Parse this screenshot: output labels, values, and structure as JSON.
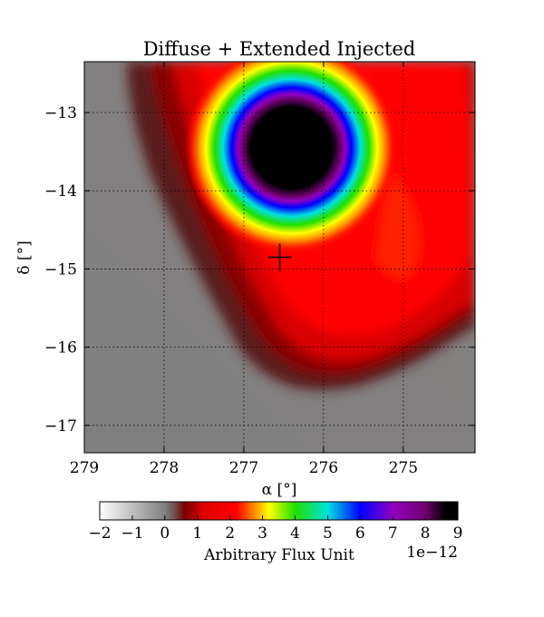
{
  "chart_data": {
    "type": "heatmap",
    "title": "Diffuse + Extended Injected",
    "xlabel": "α [°]",
    "ylabel": "δ [°]",
    "xlim": [
      279.0,
      274.1
    ],
    "ylim": [
      -17.35,
      -12.35
    ],
    "x_ticks": [
      279,
      278,
      277,
      276,
      275
    ],
    "y_ticks": [
      -13,
      -14,
      -15,
      -16,
      -17
    ],
    "grid": true,
    "marker": {
      "type": "cross",
      "x": 276.55,
      "y": -14.85
    },
    "source": {
      "x": 276.4,
      "y": -13.45,
      "peak": 9e-12
    },
    "colorbar": {
      "label": "Arbitrary Flux Unit",
      "offset_text": "1e−12",
      "range": [
        -2,
        9
      ],
      "ticks": [
        -2,
        -1,
        0,
        1,
        2,
        3,
        4,
        5,
        6,
        7,
        8,
        9
      ],
      "colormap": [
        {
          "v": -2,
          "color": "#ffffff"
        },
        {
          "v": -0.5,
          "color": "#a0a0a0"
        },
        {
          "v": 0,
          "color": "#808080"
        },
        {
          "v": 0.3,
          "color": "#6e5050"
        },
        {
          "v": 0.6,
          "color": "#7a0000"
        },
        {
          "v": 1.2,
          "color": "#e00000"
        },
        {
          "v": 2.2,
          "color": "#ff0000"
        },
        {
          "v": 2.7,
          "color": "#ff8000"
        },
        {
          "v": 3.2,
          "color": "#ffff00"
        },
        {
          "v": 4,
          "color": "#20e000"
        },
        {
          "v": 5,
          "color": "#00e0e0"
        },
        {
          "v": 6,
          "color": "#0000ff"
        },
        {
          "v": 7,
          "color": "#9000c0"
        },
        {
          "v": 8,
          "color": "#700070"
        },
        {
          "v": 8.6,
          "color": "#000000"
        },
        {
          "v": 9,
          "color": "#000000"
        }
      ]
    }
  }
}
